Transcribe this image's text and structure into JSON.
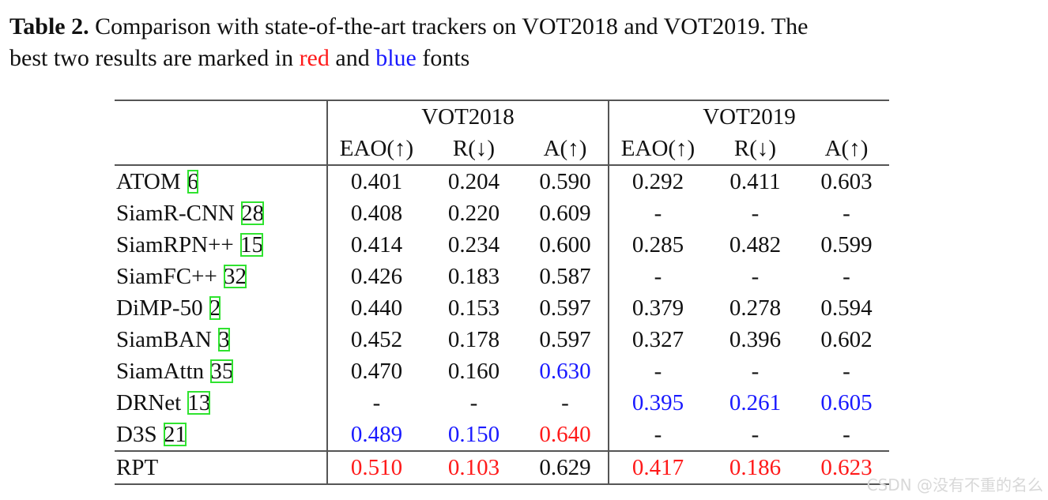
{
  "caption": {
    "label": "Table 2.",
    "line1_rest": " Comparison with state-of-the-art trackers on VOT2018 and VOT2019. The",
    "line2_start": "best two results are marked in ",
    "red_word": "red",
    "and_word": " and ",
    "blue_word": "blue",
    "fonts_word": " fonts"
  },
  "headers": {
    "groups": [
      "VOT2018",
      "VOT2019"
    ],
    "metrics": [
      "EAO(↑)",
      "R(↓)",
      "A(↑)",
      "EAO(↑)",
      "R(↓)",
      "A(↑)"
    ]
  },
  "rows": [
    {
      "name": "ATOM ",
      "ref": "6",
      "values": [
        "0.401",
        "0.204",
        "0.590",
        "0.292",
        "0.411",
        "0.603"
      ],
      "colors": [
        "",
        "",
        "",
        "",
        "",
        ""
      ]
    },
    {
      "name": "SiamR-CNN ",
      "ref": "28",
      "values": [
        "0.408",
        "0.220",
        "0.609",
        "-",
        "-",
        "-"
      ],
      "colors": [
        "",
        "",
        "",
        "",
        "",
        ""
      ]
    },
    {
      "name": "SiamRPN++ ",
      "ref": "15",
      "values": [
        "0.414",
        "0.234",
        "0.600",
        "0.285",
        "0.482",
        "0.599"
      ],
      "colors": [
        "",
        "",
        "",
        "",
        "",
        ""
      ]
    },
    {
      "name": "SiamFC++ ",
      "ref": "32",
      "values": [
        "0.426",
        "0.183",
        "0.587",
        "-",
        "-",
        "-"
      ],
      "colors": [
        "",
        "",
        "",
        "",
        "",
        ""
      ]
    },
    {
      "name": "DiMP-50 ",
      "ref": "2",
      "values": [
        "0.440",
        "0.153",
        "0.597",
        "0.379",
        "0.278",
        "0.594"
      ],
      "colors": [
        "",
        "",
        "",
        "",
        "",
        ""
      ]
    },
    {
      "name": "SiamBAN ",
      "ref": "3",
      "values": [
        "0.452",
        "0.178",
        "0.597",
        "0.327",
        "0.396",
        "0.602"
      ],
      "colors": [
        "",
        "",
        "",
        "",
        "",
        ""
      ]
    },
    {
      "name": "SiamAttn ",
      "ref": "35",
      "values": [
        "0.470",
        "0.160",
        "0.630",
        "-",
        "-",
        "-"
      ],
      "colors": [
        "",
        "",
        "b",
        "",
        "",
        ""
      ]
    },
    {
      "name": "DRNet ",
      "ref": "13",
      "values": [
        "-",
        "-",
        "-",
        "0.395",
        "0.261",
        "0.605"
      ],
      "colors": [
        "",
        "",
        "",
        "b",
        "b",
        "b"
      ]
    },
    {
      "name": "D3S ",
      "ref": "21",
      "values": [
        "0.489",
        "0.150",
        "0.640",
        "-",
        "-",
        "-"
      ],
      "colors": [
        "b",
        "b",
        "r",
        "",
        "",
        ""
      ]
    },
    {
      "name": "RPT",
      "ref": "",
      "values": [
        "0.510",
        "0.103",
        "0.629",
        "0.417",
        "0.186",
        "0.623"
      ],
      "colors": [
        "r",
        "r",
        "",
        "r",
        "r",
        "r"
      ]
    }
  ],
  "watermark": "CSDN @没有不重的名么",
  "colors": {
    "red": "#ff1a1a",
    "blue": "#1a1aff",
    "ref_box": "#2fe32f"
  }
}
